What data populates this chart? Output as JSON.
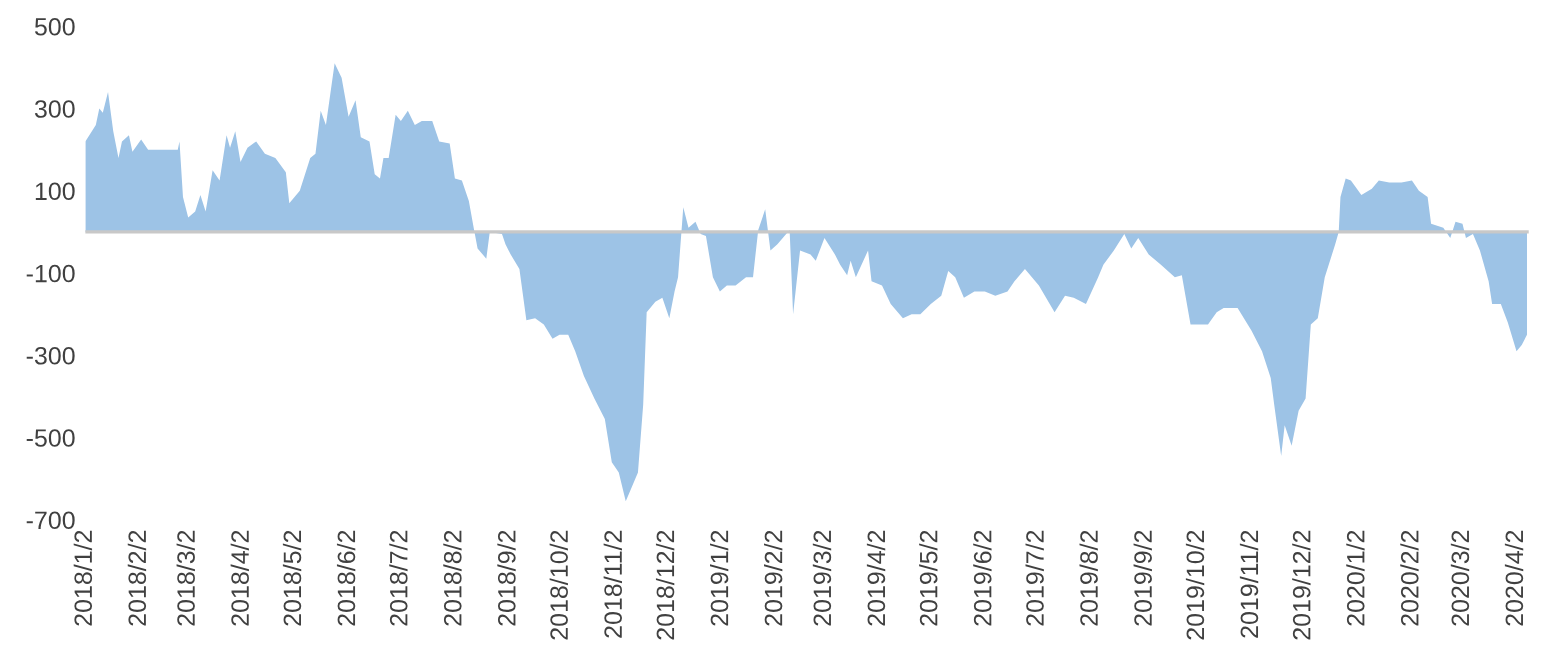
{
  "chart_data": {
    "type": "area",
    "color": "#9dc3e6",
    "x": [
      "2018-01-02",
      "2018-01-08",
      "2018-01-10",
      "2018-01-12",
      "2018-01-15",
      "2018-01-18",
      "2018-01-21",
      "2018-01-23",
      "2018-01-27",
      "2018-01-29",
      "2018-02-03",
      "2018-02-07",
      "2018-02-24",
      "2018-02-25",
      "2018-02-27",
      "2018-03-02",
      "2018-03-06",
      "2018-03-09",
      "2018-03-12",
      "2018-03-16",
      "2018-03-20",
      "2018-03-24",
      "2018-03-26",
      "2018-03-29",
      "2018-04-01",
      "2018-04-05",
      "2018-04-10",
      "2018-04-15",
      "2018-04-21",
      "2018-04-27",
      "2018-04-29",
      "2018-05-05",
      "2018-05-11",
      "2018-05-14",
      "2018-05-17",
      "2018-05-20",
      "2018-05-25",
      "2018-05-29",
      "2018-06-02",
      "2018-06-06",
      "2018-06-09",
      "2018-06-14",
      "2018-06-17",
      "2018-06-20",
      "2018-06-22",
      "2018-06-25",
      "2018-06-29",
      "2018-07-02",
      "2018-07-06",
      "2018-07-10",
      "2018-07-14",
      "2018-07-20",
      "2018-07-24",
      "2018-07-30",
      "2018-08-02",
      "2018-08-06",
      "2018-08-10",
      "2018-08-13",
      "2018-08-15",
      "2018-08-20",
      "2018-08-22",
      "2018-08-29",
      "2018-08-31",
      "2018-09-03",
      "2018-09-08",
      "2018-09-12",
      "2018-09-17",
      "2018-09-22",
      "2018-09-27",
      "2018-10-01",
      "2018-10-06",
      "2018-10-10",
      "2018-10-15",
      "2018-10-21",
      "2018-10-27",
      "2018-10-31",
      "2018-11-04",
      "2018-11-08",
      "2018-11-11",
      "2018-11-15",
      "2018-11-18",
      "2018-11-20",
      "2018-11-25",
      "2018-11-29",
      "2018-12-03",
      "2018-12-06",
      "2018-12-08",
      "2018-12-11",
      "2018-12-14",
      "2018-12-18",
      "2018-12-21",
      "2018-12-24",
      "2018-12-28",
      "2019-01-01",
      "2019-01-05",
      "2019-01-10",
      "2019-01-16",
      "2019-01-20",
      "2019-01-23",
      "2019-01-27",
      "2019-01-30",
      "2019-02-03",
      "2019-02-10",
      "2019-02-12",
      "2019-02-16",
      "2019-02-22",
      "2019-02-25",
      "2019-03-02",
      "2019-03-08",
      "2019-03-11",
      "2019-03-15",
      "2019-03-17",
      "2019-03-20",
      "2019-03-27",
      "2019-03-29",
      "2019-04-04",
      "2019-04-09",
      "2019-04-16",
      "2019-04-21",
      "2019-04-26",
      "2019-05-02",
      "2019-05-08",
      "2019-05-12",
      "2019-05-16",
      "2019-05-21",
      "2019-05-27",
      "2019-06-02",
      "2019-06-08",
      "2019-06-15",
      "2019-06-19",
      "2019-06-25",
      "2019-07-03",
      "2019-07-12",
      "2019-07-18",
      "2019-07-23",
      "2019-07-30",
      "2019-08-06",
      "2019-08-09",
      "2019-08-15",
      "2019-08-21",
      "2019-08-25",
      "2019-08-29",
      "2019-09-04",
      "2019-09-11",
      "2019-09-19",
      "2019-09-23",
      "2019-09-28",
      "2019-10-04",
      "2019-10-08",
      "2019-10-13",
      "2019-10-17",
      "2019-10-25",
      "2019-11-02",
      "2019-11-08",
      "2019-11-13",
      "2019-11-15",
      "2019-11-19",
      "2019-11-21",
      "2019-11-25",
      "2019-11-29",
      "2019-12-03",
      "2019-12-06",
      "2019-12-10",
      "2019-12-14",
      "2019-12-20",
      "2019-12-22",
      "2019-12-23",
      "2019-12-26",
      "2019-12-29",
      "2020-01-04",
      "2020-01-10",
      "2020-01-14",
      "2020-01-20",
      "2020-01-27",
      "2020-02-02",
      "2020-02-06",
      "2020-02-11",
      "2020-02-13",
      "2020-02-20",
      "2020-02-24",
      "2020-02-27",
      "2020-03-02",
      "2020-03-04",
      "2020-03-08",
      "2020-03-12",
      "2020-03-17",
      "2020-03-19",
      "2020-03-24",
      "2020-03-28",
      "2020-04-02",
      "2020-04-05",
      "2020-04-08"
    ],
    "values": [
      220,
      260,
      300,
      290,
      340,
      245,
      180,
      220,
      235,
      195,
      225,
      200,
      200,
      220,
      85,
      35,
      50,
      90,
      50,
      150,
      125,
      235,
      205,
      245,
      170,
      205,
      220,
      190,
      180,
      145,
      70,
      100,
      180,
      190,
      295,
      260,
      410,
      375,
      280,
      320,
      230,
      220,
      140,
      130,
      180,
      180,
      285,
      270,
      295,
      260,
      270,
      270,
      220,
      215,
      130,
      125,
      75,
      5,
      -40,
      -65,
      0,
      -5,
      -30,
      -55,
      -90,
      -215,
      -210,
      -225,
      -260,
      -250,
      -250,
      -290,
      -350,
      -405,
      -455,
      -560,
      -585,
      -655,
      -625,
      -585,
      -420,
      -195,
      -170,
      -160,
      -210,
      -145,
      -110,
      60,
      10,
      25,
      -5,
      -10,
      -110,
      -145,
      -130,
      -130,
      -110,
      -110,
      5,
      55,
      -45,
      -30,
      5,
      -200,
      -45,
      -55,
      -70,
      -15,
      -55,
      -80,
      -105,
      -70,
      -110,
      -45,
      -120,
      -130,
      -175,
      -210,
      -200,
      -200,
      -175,
      -155,
      -95,
      -110,
      -160,
      -145,
      -145,
      -155,
      -145,
      -120,
      -90,
      -130,
      -195,
      -155,
      -160,
      -175,
      -110,
      -80,
      -45,
      -5,
      -40,
      -15,
      -55,
      -80,
      -110,
      -105,
      -225,
      -225,
      -225,
      -195,
      -185,
      -185,
      -240,
      -290,
      -355,
      -420,
      -545,
      -470,
      -520,
      -435,
      -405,
      -225,
      -210,
      -110,
      -30,
      0,
      85,
      130,
      125,
      90,
      105,
      125,
      120,
      120,
      125,
      100,
      85,
      20,
      10,
      -15,
      25,
      20,
      -15,
      -5,
      -45,
      -120,
      -175,
      -175,
      -220,
      -290,
      -275,
      -250
    ],
    "xlim": [
      "2018-01-02",
      "2020-04-09"
    ],
    "xticks": [
      {
        "value": "2018-01-02",
        "label": "2018/1/2"
      },
      {
        "value": "2018-02-02",
        "label": "2018/2/2"
      },
      {
        "value": "2018-03-02",
        "label": "2018/3/2"
      },
      {
        "value": "2018-04-02",
        "label": "2018/4/2"
      },
      {
        "value": "2018-05-02",
        "label": "2018/5/2"
      },
      {
        "value": "2018-06-02",
        "label": "2018/6/2"
      },
      {
        "value": "2018-07-02",
        "label": "2018/7/2"
      },
      {
        "value": "2018-08-02",
        "label": "2018/8/2"
      },
      {
        "value": "2018-09-02",
        "label": "2018/9/2"
      },
      {
        "value": "2018-10-02",
        "label": "2018/10/2"
      },
      {
        "value": "2018-11-02",
        "label": "2018/11/2"
      },
      {
        "value": "2018-12-02",
        "label": "2018/12/2"
      },
      {
        "value": "2019-01-02",
        "label": "2019/1/2"
      },
      {
        "value": "2019-02-02",
        "label": "2019/2/2"
      },
      {
        "value": "2019-03-02",
        "label": "2019/3/2"
      },
      {
        "value": "2019-04-02",
        "label": "2019/4/2"
      },
      {
        "value": "2019-05-02",
        "label": "2019/5/2"
      },
      {
        "value": "2019-06-02",
        "label": "2019/6/2"
      },
      {
        "value": "2019-07-02",
        "label": "2019/7/2"
      },
      {
        "value": "2019-08-02",
        "label": "2019/8/2"
      },
      {
        "value": "2019-09-02",
        "label": "2019/9/2"
      },
      {
        "value": "2019-10-02",
        "label": "2019/10/2"
      },
      {
        "value": "2019-11-02",
        "label": "2019/11/2"
      },
      {
        "value": "2019-12-02",
        "label": "2019/12/2"
      },
      {
        "value": "2020-01-02",
        "label": "2020/1/2"
      },
      {
        "value": "2020-02-02",
        "label": "2020/2/2"
      },
      {
        "value": "2020-03-02",
        "label": "2020/3/2"
      },
      {
        "value": "2020-04-02",
        "label": "2020/4/2"
      }
    ],
    "ylim": [
      -700,
      500
    ],
    "yticks": [
      500,
      300,
      100,
      -100,
      -300,
      -500,
      -700
    ],
    "ref_lines": [
      {
        "axis": "y",
        "value": 0,
        "color": "#c8c8c8"
      }
    ],
    "grid": false,
    "legend": false
  }
}
